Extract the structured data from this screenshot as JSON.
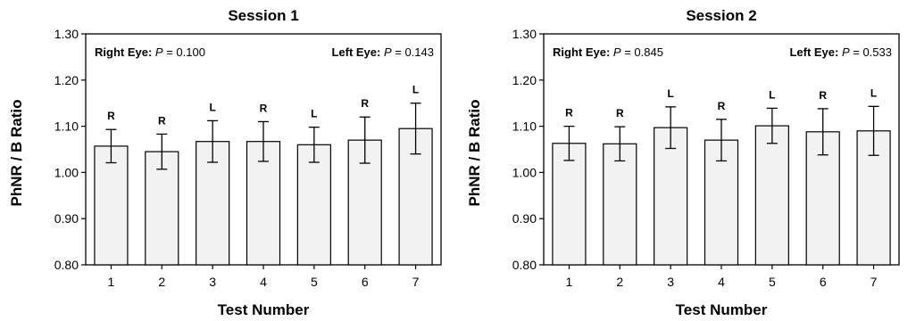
{
  "chart_data": [
    {
      "type": "bar",
      "title": "Session 1",
      "xlabel": "Test Number",
      "ylabel": "PhNR / B Ratio",
      "ylim": [
        0.8,
        1.3
      ],
      "yticks": [
        "0.80",
        "0.90",
        "1.00",
        "1.10",
        "1.20",
        "1.30"
      ],
      "categories": [
        "1",
        "2",
        "3",
        "4",
        "5",
        "6",
        "7"
      ],
      "values": [
        1.057,
        1.045,
        1.067,
        1.067,
        1.06,
        1.07,
        1.095
      ],
      "errors": [
        0.036,
        0.038,
        0.045,
        0.043,
        0.038,
        0.05,
        0.055
      ],
      "bar_labels": [
        "R",
        "R",
        "L",
        "R",
        "L",
        "R",
        "L"
      ],
      "annotations": {
        "right": {
          "prefix": "Right Eye:",
          "p_symbol": "P",
          "text": " = 0.100"
        },
        "left": {
          "prefix": "Left Eye:",
          "p_symbol": "P",
          "text": " = 0.143"
        }
      },
      "bar_color": "#f2f2f2"
    },
    {
      "type": "bar",
      "title": "Session 2",
      "xlabel": "Test Number",
      "ylabel": "PhNR / B Ratio",
      "ylim": [
        0.8,
        1.3
      ],
      "yticks": [
        "0.80",
        "0.90",
        "1.00",
        "1.10",
        "1.20",
        "1.30"
      ],
      "categories": [
        "1",
        "2",
        "3",
        "4",
        "5",
        "6",
        "7"
      ],
      "values": [
        1.063,
        1.062,
        1.097,
        1.07,
        1.101,
        1.088,
        1.09
      ],
      "errors": [
        0.037,
        0.037,
        0.045,
        0.045,
        0.038,
        0.05,
        0.053
      ],
      "bar_labels": [
        "R",
        "R",
        "L",
        "R",
        "L",
        "R",
        "L"
      ],
      "annotations": {
        "right": {
          "prefix": "Right Eye:",
          "p_symbol": "P",
          "text": " = 0.845"
        },
        "left": {
          "prefix": "Left Eye:",
          "p_symbol": "P",
          "text": " = 0.533"
        }
      },
      "bar_color": "#f2f2f2"
    }
  ]
}
